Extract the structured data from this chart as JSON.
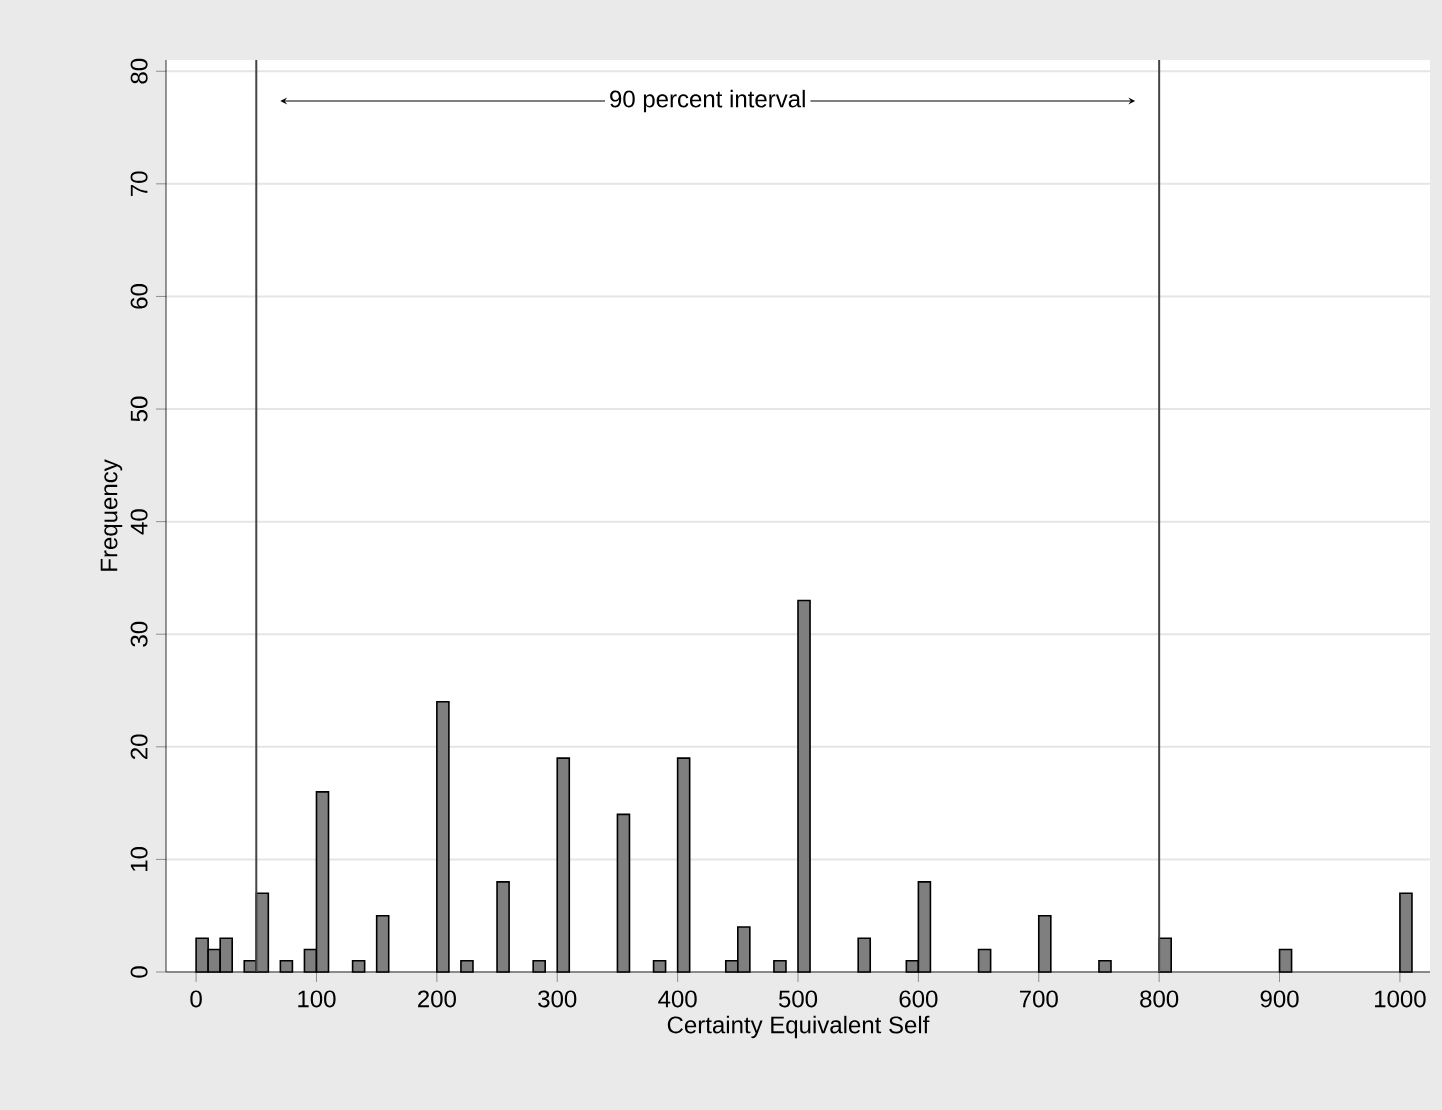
{
  "chart_data": {
    "type": "histogram",
    "xlabel": "Certainty Equivalent Self",
    "ylabel": "Frequency",
    "bins": [
      0,
      10,
      20,
      30,
      40,
      50,
      60,
      70,
      80,
      90,
      100,
      110,
      120,
      130,
      140,
      150,
      160,
      170,
      180,
      190,
      200,
      210,
      220,
      230,
      240,
      250,
      260,
      270,
      280,
      290,
      300,
      310,
      320,
      330,
      340,
      350,
      360,
      370,
      380,
      390,
      400,
      410,
      420,
      430,
      440,
      450,
      460,
      470,
      480,
      490,
      500,
      510,
      520,
      530,
      540,
      550,
      560,
      570,
      580,
      590,
      600,
      610,
      620,
      630,
      640,
      650,
      660,
      670,
      680,
      690,
      700,
      710,
      720,
      730,
      740,
      750,
      760,
      770,
      780,
      790,
      800,
      810,
      820,
      830,
      840,
      850,
      860,
      870,
      880,
      890,
      900,
      910,
      920,
      930,
      940,
      950,
      960,
      970,
      980,
      990,
      1000,
      1010
    ],
    "values": [
      3,
      2,
      3,
      0,
      1,
      7,
      0,
      1,
      0,
      2,
      16,
      0,
      0,
      1,
      0,
      5,
      0,
      0,
      0,
      0,
      24,
      0,
      1,
      0,
      0,
      8,
      0,
      0,
      1,
      0,
      19,
      0,
      0,
      0,
      0,
      14,
      0,
      0,
      1,
      0,
      19,
      0,
      0,
      0,
      1,
      4,
      0,
      0,
      1,
      0,
      33,
      0,
      0,
      0,
      0,
      3,
      0,
      0,
      0,
      1,
      8,
      0,
      0,
      0,
      0,
      2,
      0,
      0,
      0,
      0,
      5,
      0,
      0,
      0,
      0,
      1,
      0,
      0,
      0,
      0,
      3,
      0,
      0,
      0,
      0,
      0,
      0,
      0,
      0,
      0,
      2,
      0,
      0,
      0,
      0,
      0,
      0,
      0,
      0,
      0,
      7
    ],
    "color": "#7f7f7f",
    "xlim": [
      -25,
      1025
    ],
    "xticks": [
      0,
      100,
      200,
      300,
      400,
      500,
      600,
      700,
      800,
      900,
      1000
    ],
    "ylim": [
      0,
      81
    ],
    "yticks": [
      0,
      10,
      20,
      30,
      40,
      50,
      60,
      70,
      80
    ],
    "grid": "y",
    "ref_lines": [
      {
        "axis": "x",
        "value": 50,
        "color": "#444444"
      },
      {
        "axis": "x",
        "value": 800,
        "color": "#444444"
      }
    ],
    "annotations": [
      "90 percent interval"
    ]
  }
}
